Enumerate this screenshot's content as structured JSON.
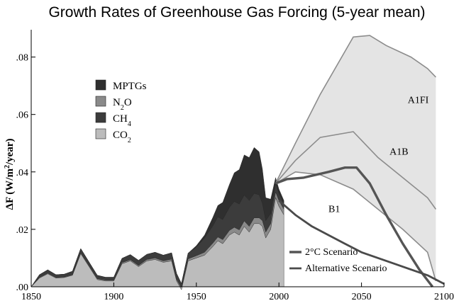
{
  "chart_data": {
    "type": "area",
    "title": "Growth Rates of Greenhouse Gas Forcing (5-year mean)",
    "ylabel": {
      "prefix": "ΔF (W/m",
      "sup": "2",
      "suffix": "/year)"
    },
    "xlim": [
      1850,
      2100
    ],
    "ylim": [
      0,
      0.09
    ],
    "xticks": [
      {
        "value": 1850,
        "label": "1850"
      },
      {
        "value": 1900,
        "label": "1900"
      },
      {
        "value": 1950,
        "label": "1950"
      },
      {
        "value": 2000,
        "label": "2000"
      },
      {
        "value": 2050,
        "label": "2050"
      },
      {
        "value": 2100,
        "label": "2100"
      }
    ],
    "yticks": [
      {
        "value": 0,
        "label": ".00"
      },
      {
        "value": 0.02,
        "label": ".02"
      },
      {
        "value": 0.04,
        "label": ".04"
      },
      {
        "value": 0.06,
        "label": ".06"
      },
      {
        "value": 0.08,
        "label": ".08"
      }
    ],
    "colors": {
      "MPTGs": "#2f2f2f",
      "N2O": "#8a8a8a",
      "CH4": "#3c3c3c",
      "CO2": "#bcbcbc",
      "band": "#e4e4e4",
      "scenario_line": "#8c8c8c",
      "two_deg": "#555555",
      "alternative": "#4a4a4a"
    },
    "legend": {
      "position": "upper-left",
      "entries": [
        {
          "key": "MPTGs",
          "text": "MPTGs",
          "sub": ""
        },
        {
          "key": "N2O",
          "text": "N",
          "sub": "2",
          "after": "O"
        },
        {
          "key": "CH4",
          "text": "CH",
          "sub": "4",
          "after": ""
        },
        {
          "key": "CO2",
          "text": "CO",
          "sub": "2",
          "after": ""
        }
      ]
    },
    "historical": {
      "x": [
        1850,
        1855,
        1860,
        1865,
        1870,
        1875,
        1880,
        1885,
        1890,
        1895,
        1900,
        1905,
        1910,
        1915,
        1920,
        1925,
        1930,
        1935,
        1938,
        1941,
        1945,
        1950,
        1955,
        1960,
        1963,
        1966,
        1970,
        1973,
        1976,
        1979,
        1982,
        1985,
        1988,
        1990,
        1992,
        1995,
        1998,
        2000,
        2003
      ],
      "CO2": [
        0.0,
        0.003,
        0.0045,
        0.003,
        0.0032,
        0.004,
        0.0115,
        0.007,
        0.0025,
        0.002,
        0.002,
        0.008,
        0.009,
        0.007,
        0.009,
        0.0095,
        0.0085,
        0.009,
        0.002,
        -0.001,
        0.009,
        0.01,
        0.011,
        0.014,
        0.016,
        0.015,
        0.018,
        0.019,
        0.018,
        0.021,
        0.019,
        0.022,
        0.022,
        0.021,
        0.017,
        0.02,
        0.031,
        0.028,
        0.025
      ],
      "CH4": [
        0.0,
        0.001,
        0.0012,
        0.001,
        0.001,
        0.0012,
        0.0015,
        0.0013,
        0.0012,
        0.001,
        0.001,
        0.0015,
        0.0018,
        0.0018,
        0.0018,
        0.002,
        0.002,
        0.0022,
        0.002,
        0.0015,
        0.002,
        0.003,
        0.005,
        0.006,
        0.007,
        0.007,
        0.008,
        0.009,
        0.009,
        0.009,
        0.009,
        0.0085,
        0.008,
        0.006,
        0.004,
        0.0035,
        0.003,
        0.0025,
        0.002
      ],
      "N2O": [
        0.0,
        0.0002,
        0.0002,
        0.0002,
        0.0002,
        0.0002,
        0.0003,
        0.0003,
        0.0003,
        0.0003,
        0.0003,
        0.0004,
        0.0004,
        0.0004,
        0.0005,
        0.0005,
        0.0005,
        0.0006,
        0.0006,
        0.0006,
        0.0007,
        0.0008,
        0.001,
        0.0012,
        0.0013,
        0.0014,
        0.0016,
        0.0017,
        0.0018,
        0.0019,
        0.002,
        0.002,
        0.002,
        0.002,
        0.002,
        0.002,
        0.002,
        0.002,
        0.002
      ],
      "MPTGs": [
        0.0,
        0.0,
        0.0,
        0.0,
        0.0,
        0.0,
        0.0,
        0.0,
        0.0,
        0.0,
        0.0,
        0.0,
        0.0,
        0.0,
        0.0,
        0.0,
        0.0,
        0.0,
        0.0,
        0.0,
        0.0,
        0.0005,
        0.001,
        0.003,
        0.004,
        0.006,
        0.008,
        0.01,
        0.012,
        0.014,
        0.015,
        0.016,
        0.015,
        0.012,
        0.008,
        0.005,
        0.002,
        0.0015,
        0.001
      ]
    },
    "scenarios": [
      {
        "name": "A1FI",
        "label": "A1FI",
        "label_at": [
          2078,
          0.064
        ],
        "x": [
          1998,
          2010,
          2025,
          2045,
          2055,
          2065,
          2080,
          2090,
          2095
        ],
        "y": [
          0.036,
          0.05,
          0.067,
          0.087,
          0.0875,
          0.084,
          0.08,
          0.076,
          0.073
        ]
      },
      {
        "name": "A1B",
        "label": "A1B",
        "label_at": [
          2067,
          0.046
        ],
        "x": [
          1998,
          2010,
          2025,
          2045,
          2060,
          2075,
          2090,
          2095
        ],
        "y": [
          0.036,
          0.044,
          0.052,
          0.054,
          0.045,
          0.038,
          0.031,
          0.027
        ]
      },
      {
        "name": "B1",
        "label": "B1",
        "label_at": [
          2030,
          0.026
        ],
        "x": [
          1998,
          2010,
          2025,
          2045,
          2060,
          2075,
          2090,
          2095
        ],
        "y": [
          0.036,
          0.04,
          0.039,
          0.034,
          0.027,
          0.02,
          0.012,
          0.002
        ]
      }
    ],
    "two_degree": {
      "label": "2°C Scenario",
      "x": [
        1998,
        2005,
        2015,
        2030,
        2040,
        2047,
        2055,
        2065,
        2075,
        2085,
        2093
      ],
      "y": [
        0.036,
        0.0375,
        0.038,
        0.04,
        0.0415,
        0.0415,
        0.036,
        0.025,
        0.015,
        0.006,
        0.0
      ]
    },
    "alternative": {
      "label": "Alternative Scenario",
      "x": [
        2000,
        2010,
        2020,
        2030,
        2040,
        2050,
        2060,
        2070,
        2080,
        2090,
        2100
      ],
      "y": [
        0.03,
        0.025,
        0.021,
        0.018,
        0.015,
        0.012,
        0.01,
        0.008,
        0.006,
        0.004,
        0.001
      ]
    }
  }
}
